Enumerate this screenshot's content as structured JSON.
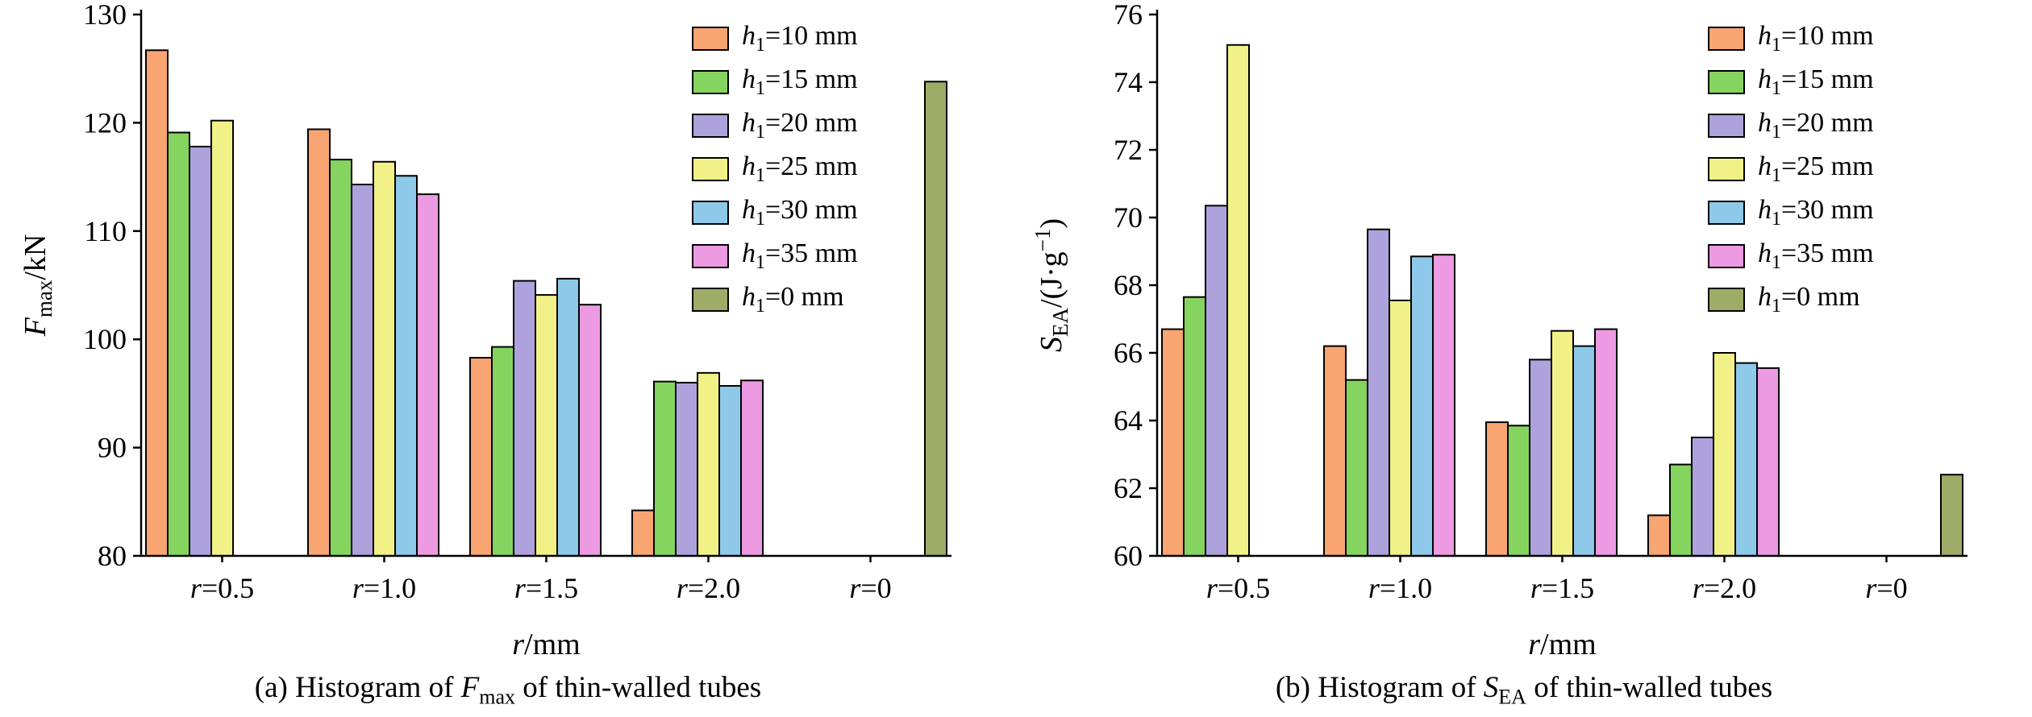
{
  "figure": {
    "background": "#ffffff",
    "bar_edge_color": "#000000",
    "axis_color": "#000000"
  },
  "chart_data": [
    {
      "type": "bar",
      "panel": "a",
      "caption": "(a) Histogram of Fmax of thin-walled tubes",
      "caption_parts": {
        "prefix": "(a) Histogram of ",
        "var": "F",
        "sub": "max",
        "suffix": " of thin-walled tubes"
      },
      "ylabel": "Fmax/kN",
      "ylabel_parts": {
        "var": "F",
        "sub": "max",
        "pre": "/kN",
        "sup": "",
        "post": ""
      },
      "xlabel": "r/mm",
      "xlabel_parts": {
        "var": "r",
        "rest": "/mm"
      },
      "ylim": [
        80,
        130
      ],
      "yticks": [
        80,
        90,
        100,
        110,
        120,
        130
      ],
      "grid": false,
      "legend_position": "top-right",
      "categories": [
        "r=0.5",
        "r=1.0",
        "r=1.5",
        "r=2.0",
        "r=0"
      ],
      "category_parts": [
        {
          "var": "r",
          "rest": "=0.5"
        },
        {
          "var": "r",
          "rest": "=1.0"
        },
        {
          "var": "r",
          "rest": "=1.5"
        },
        {
          "var": "r",
          "rest": "=2.0"
        },
        {
          "var": "r",
          "rest": "=0"
        }
      ],
      "series": [
        {
          "name": "h1=10 mm",
          "name_parts": {
            "var": "h",
            "sub": "1",
            "rest": "=10 mm"
          },
          "color": "#F8A571",
          "values": [
            126.7,
            119.4,
            98.3,
            84.2,
            null
          ]
        },
        {
          "name": "h1=15 mm",
          "name_parts": {
            "var": "h",
            "sub": "1",
            "rest": "=15 mm"
          },
          "color": "#85D45F",
          "values": [
            119.1,
            116.6,
            99.3,
            96.1,
            null
          ]
        },
        {
          "name": "h1=20 mm",
          "name_parts": {
            "var": "h",
            "sub": "1",
            "rest": "=20 mm"
          },
          "color": "#ADA2DB",
          "values": [
            117.8,
            114.3,
            105.4,
            96.0,
            null
          ]
        },
        {
          "name": "h1=25 mm",
          "name_parts": {
            "var": "h",
            "sub": "1",
            "rest": "=25 mm"
          },
          "color": "#F2F188",
          "values": [
            120.2,
            116.4,
            104.1,
            96.9,
            null
          ]
        },
        {
          "name": "h1=30 mm",
          "name_parts": {
            "var": "h",
            "sub": "1",
            "rest": "=30 mm"
          },
          "color": "#8EC9E9",
          "values": [
            null,
            115.1,
            105.6,
            95.7,
            null
          ]
        },
        {
          "name": "h1=35 mm",
          "name_parts": {
            "var": "h",
            "sub": "1",
            "rest": "=35 mm"
          },
          "color": "#EC9BE3",
          "values": [
            null,
            113.4,
            103.2,
            96.2,
            null
          ]
        },
        {
          "name": "h1=0 mm",
          "name_parts": {
            "var": "h",
            "sub": "1",
            "rest": "=0 mm"
          },
          "color": "#9FAC68",
          "values": [
            null,
            null,
            null,
            null,
            123.8
          ]
        }
      ]
    },
    {
      "type": "bar",
      "panel": "b",
      "caption": "(b) Histogram of SEA of thin-walled tubes",
      "caption_parts": {
        "prefix": "(b) Histogram of ",
        "var": "S",
        "sub": "EA",
        "suffix": " of thin-walled tubes"
      },
      "ylabel": "SEA/(J·g−1)",
      "ylabel_parts": {
        "var": "S",
        "sub": "EA",
        "pre": "/(J·g",
        "sup": "−1",
        "post": ")"
      },
      "xlabel": "r/mm",
      "xlabel_parts": {
        "var": "r",
        "rest": "/mm"
      },
      "ylim": [
        60,
        76
      ],
      "yticks": [
        60,
        62,
        64,
        66,
        68,
        70,
        72,
        74,
        76
      ],
      "grid": false,
      "legend_position": "top-right",
      "categories": [
        "r=0.5",
        "r=1.0",
        "r=1.5",
        "r=2.0",
        "r=0"
      ],
      "category_parts": [
        {
          "var": "r",
          "rest": "=0.5"
        },
        {
          "var": "r",
          "rest": "=1.0"
        },
        {
          "var": "r",
          "rest": "=1.5"
        },
        {
          "var": "r",
          "rest": "=2.0"
        },
        {
          "var": "r",
          "rest": "=0"
        }
      ],
      "series": [
        {
          "name": "h1=10 mm",
          "name_parts": {
            "var": "h",
            "sub": "1",
            "rest": "=10 mm"
          },
          "color": "#F8A571",
          "values": [
            66.7,
            66.2,
            63.95,
            61.2,
            null
          ]
        },
        {
          "name": "h1=15 mm",
          "name_parts": {
            "var": "h",
            "sub": "1",
            "rest": "=15 mm"
          },
          "color": "#85D45F",
          "values": [
            67.65,
            65.2,
            63.85,
            62.7,
            null
          ]
        },
        {
          "name": "h1=20 mm",
          "name_parts": {
            "var": "h",
            "sub": "1",
            "rest": "=20 mm"
          },
          "color": "#ADA2DB",
          "values": [
            70.35,
            69.65,
            65.8,
            63.5,
            null
          ]
        },
        {
          "name": "h1=25 mm",
          "name_parts": {
            "var": "h",
            "sub": "1",
            "rest": "=25 mm"
          },
          "color": "#F2F188",
          "values": [
            75.1,
            67.55,
            66.65,
            66.0,
            null
          ]
        },
        {
          "name": "h1=30 mm",
          "name_parts": {
            "var": "h",
            "sub": "1",
            "rest": "=30 mm"
          },
          "color": "#8EC9E9",
          "values": [
            null,
            68.85,
            66.2,
            65.7,
            null
          ]
        },
        {
          "name": "h1=35 mm",
          "name_parts": {
            "var": "h",
            "sub": "1",
            "rest": "=35 mm"
          },
          "color": "#EC9BE3",
          "values": [
            null,
            68.9,
            66.7,
            65.55,
            null
          ]
        },
        {
          "name": "h1=0 mm",
          "name_parts": {
            "var": "h",
            "sub": "1",
            "rest": "=0 mm"
          },
          "color": "#9FAC68",
          "values": [
            null,
            null,
            null,
            null,
            62.4
          ]
        }
      ]
    }
  ]
}
